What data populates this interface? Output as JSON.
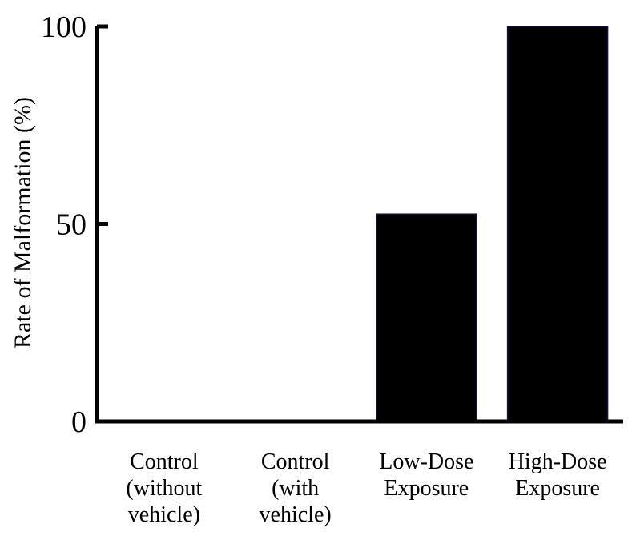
{
  "chart_data": {
    "type": "bar",
    "title": "",
    "xlabel": "",
    "ylabel": "Rate of Malformation (%)",
    "ylim": [
      0,
      100
    ],
    "yticks": [
      0,
      50,
      100
    ],
    "grid": false,
    "categories": [
      [
        "Control",
        "(without",
        "vehicle)"
      ],
      [
        "Control",
        "(with",
        "vehicle)"
      ],
      [
        "Low-Dose",
        "Exposure"
      ],
      [
        "High-Dose",
        "Exposure"
      ]
    ],
    "values": [
      0,
      0,
      52.5,
      100
    ],
    "colors": {
      "bar": "#000000",
      "bar_edge": "#1a1040",
      "axis": "#000000"
    }
  }
}
